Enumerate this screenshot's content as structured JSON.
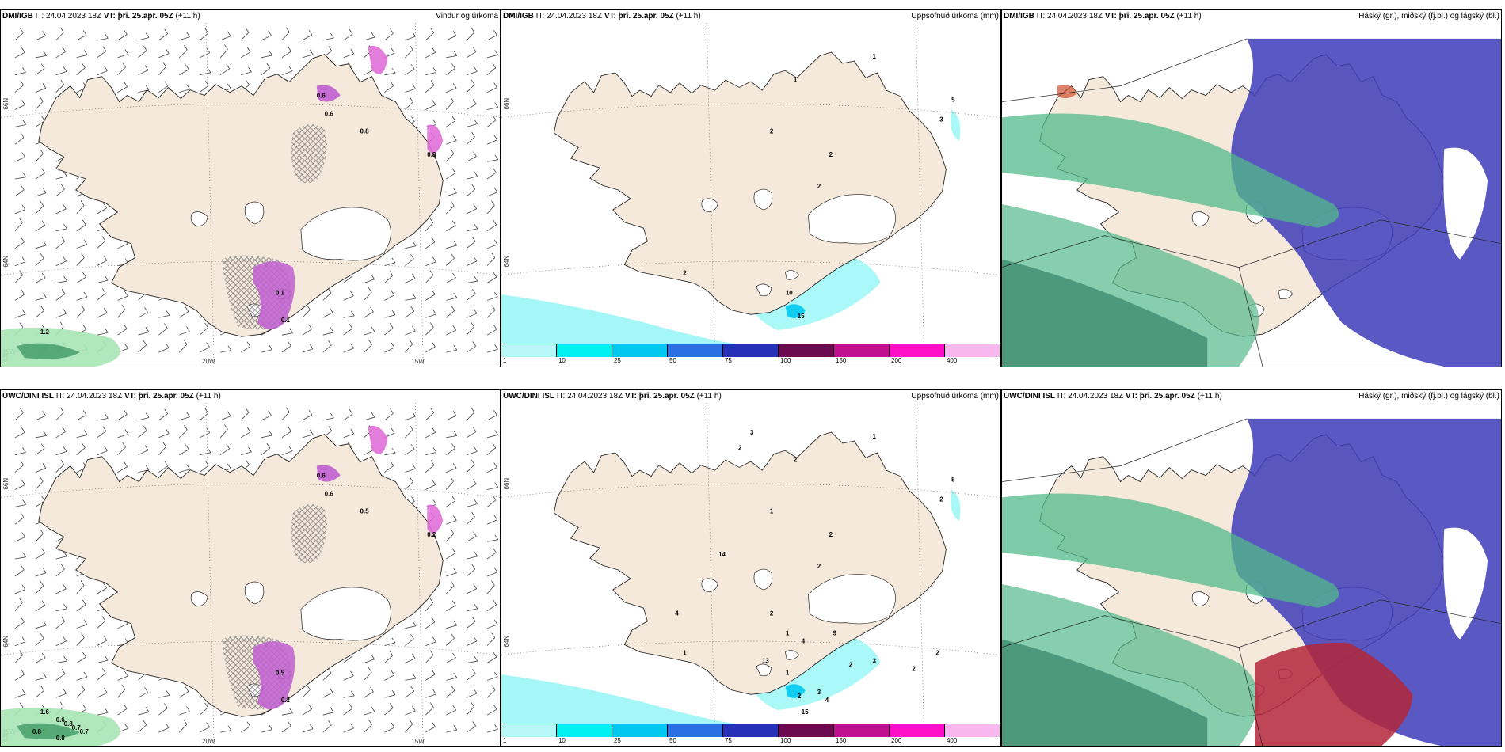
{
  "colors": {
    "land": "#f5e9dc",
    "hatch": "#6e6e6e",
    "precip_purple": "#c15fd1",
    "precip_pink": "#e070d8",
    "green_light": "#a9e5b4",
    "green_dark": "#2d8f55",
    "cloud_high_blue": "#3d3cb8",
    "cloud_mid_blue": "#3ea2ea",
    "cloud_low_green": "#52b98a",
    "red_cloud": "#b3263a",
    "cyan_precip": "#8ff5f5"
  },
  "panels": [
    {
      "id": "p1",
      "model": "DMI/IGB",
      "it_label": "IT: 24.04.2023 18Z",
      "vt_label": "VT: þri. 25.apr. 05Z",
      "lead": "(+11 h)",
      "title": "Vindur og úrkoma",
      "kind": "wind",
      "lat_labels": [
        "66N",
        "64N",
        "63N"
      ],
      "lon_labels": [
        "25W",
        "20W",
        "15W"
      ],
      "values": [
        "0.6",
        "0.6",
        "0.8",
        "0.8",
        "0.1",
        "0.1",
        "1.2"
      ]
    },
    {
      "id": "p2",
      "model": "DMI/IGB",
      "it_label": "IT: 24.04.2023 18Z",
      "vt_label": "VT: þri. 25.apr. 05Z",
      "lead": "(+11 h)",
      "title": "Uppsöfnuð úrkoma (mm)",
      "kind": "accum",
      "lat_labels": [
        "66N",
        "64N"
      ],
      "values": [
        "1",
        "1",
        "2",
        "2",
        "3",
        "5",
        "2",
        "2",
        "10",
        "15"
      ]
    },
    {
      "id": "p3",
      "model": "DMI/IGB",
      "it_label": "IT: 24.04.2023 18Z",
      "vt_label": "VT: þri. 25.apr. 05Z",
      "lead": "(+11 h)",
      "title": "Háský (gr.), miðský (fj.bl.) og lágský (bl.)",
      "kind": "cloud"
    },
    {
      "id": "p4",
      "model": "UWC/DINI ISL",
      "it_label": "IT: 24.04.2023 18Z",
      "vt_label": "VT: þri. 25.apr. 05Z",
      "lead": "(+11 h)",
      "title": "",
      "kind": "wind",
      "lat_labels": [
        "66N",
        "64N",
        "63N"
      ],
      "lon_labels": [
        "25W",
        "20W",
        "15W"
      ],
      "values": [
        "0.6",
        "0.6",
        "0.5",
        "0.2",
        "0.5",
        "0.2",
        "1.6",
        "0.6",
        "0.7",
        "0.8",
        "0.8",
        "0.7",
        "0.8"
      ]
    },
    {
      "id": "p5",
      "model": "UWC/DINI ISL",
      "it_label": "IT: 24.04.2023 18Z",
      "vt_label": "VT: þri. 25.apr. 05Z",
      "lead": "(+11 h)",
      "title": "Uppsöfnuð úrkoma (mm)",
      "kind": "accum",
      "lat_labels": [
        "66N",
        "64N"
      ],
      "values": [
        "1",
        "2",
        "1",
        "2",
        "2",
        "5",
        "2",
        "1",
        "1",
        "2",
        "2",
        "2",
        "3",
        "2",
        "3",
        "4",
        "13",
        "15",
        "9",
        "14",
        "2",
        "3",
        "2",
        "1",
        "4",
        "4"
      ]
    },
    {
      "id": "p6",
      "model": "UWC/DINI ISL",
      "it_label": "IT: 24.04.2023 18Z",
      "vt_label": "VT: þri. 25.apr. 05Z",
      "lead": "(+11 h)",
      "title": "Háský (gr.), miðský (fj.bl.) og lágský (bl.)",
      "kind": "cloud"
    }
  ],
  "colorbar": {
    "labels": [
      "1",
      "10",
      "25",
      "50",
      "75",
      "100",
      "150",
      "200",
      "400"
    ],
    "colors": [
      "#b8f7f7",
      "#00f0f0",
      "#00c8f0",
      "#2b6fe5",
      "#2431b8",
      "#6b0a4e",
      "#c0108f",
      "#ff10c8",
      "#f7b8f0"
    ]
  }
}
